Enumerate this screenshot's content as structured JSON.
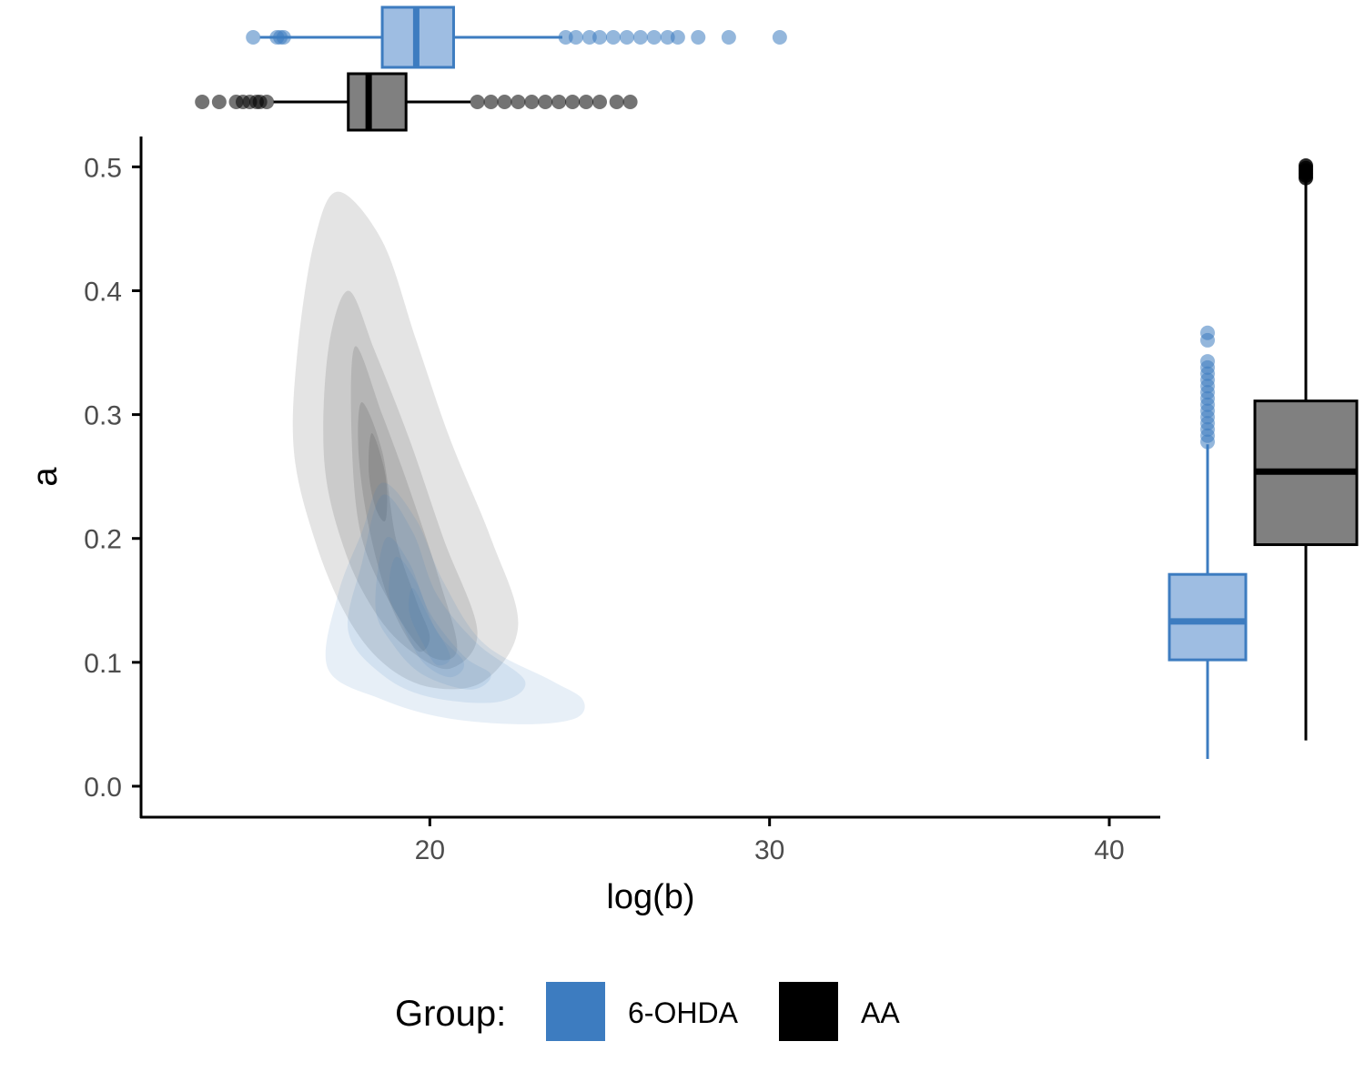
{
  "colors": {
    "group_6ohda": "#3d7cc0",
    "group_6ohda_box_fill": "#9ebde2",
    "group_aa": "#000000",
    "group_aa_box_fill": "#808080",
    "axis": "#000000",
    "tick_text": "#4d4d4d"
  },
  "chart_data": {
    "type": "scatter",
    "variant": "2d density contour with marginal boxplots",
    "title": "",
    "xlabel": "log(b)",
    "ylabel": "a",
    "xlim": [
      11.5,
      41.5
    ],
    "ylim": [
      -0.025,
      0.5245
    ],
    "x_ticks": [
      20,
      30,
      40
    ],
    "y_ticks": [
      0.0,
      0.1,
      0.2,
      0.3,
      0.4,
      0.5
    ],
    "x_tick_labels": [
      "20",
      "30",
      "40"
    ],
    "y_tick_labels": [
      "0.0",
      "0.1",
      "0.2",
      "0.3",
      "0.4",
      "0.5"
    ],
    "grid": false,
    "legend": {
      "title": "Group:",
      "position": "bottom",
      "entries": [
        "6-OHDA",
        "AA"
      ]
    },
    "series": [
      {
        "name": "6-OHDA",
        "color": "#3d7cc0",
        "density_contours": [
          [
            [
              17.0,
              0.095
            ],
            [
              17.3,
              0.155
            ],
            [
              18.0,
              0.205
            ],
            [
              18.6,
              0.245
            ],
            [
              19.6,
              0.215
            ],
            [
              20.4,
              0.165
            ],
            [
              21.6,
              0.115
            ],
            [
              23.6,
              0.085
            ],
            [
              24.5,
              0.07
            ],
            [
              24.3,
              0.055
            ],
            [
              22.8,
              0.05
            ],
            [
              20.5,
              0.055
            ],
            [
              18.6,
              0.07
            ]
          ],
          [
            [
              17.6,
              0.125
            ],
            [
              18.0,
              0.18
            ],
            [
              18.6,
              0.235
            ],
            [
              19.5,
              0.205
            ],
            [
              20.2,
              0.155
            ],
            [
              21.4,
              0.115
            ],
            [
              22.8,
              0.085
            ],
            [
              22.0,
              0.068
            ],
            [
              20.0,
              0.072
            ],
            [
              18.6,
              0.09
            ]
          ],
          [
            [
              18.4,
              0.145
            ],
            [
              18.7,
              0.2
            ],
            [
              19.4,
              0.18
            ],
            [
              20.0,
              0.14
            ],
            [
              21.0,
              0.105
            ],
            [
              21.8,
              0.09
            ],
            [
              21.2,
              0.078
            ],
            [
              19.8,
              0.09
            ],
            [
              18.9,
              0.115
            ]
          ],
          [
            [
              18.8,
              0.155
            ],
            [
              19.0,
              0.185
            ],
            [
              19.6,
              0.165
            ],
            [
              20.2,
              0.125
            ],
            [
              21.0,
              0.1
            ],
            [
              20.6,
              0.088
            ],
            [
              19.8,
              0.1
            ],
            [
              19.2,
              0.13
            ]
          ],
          [
            [
              19.4,
              0.14
            ],
            [
              19.5,
              0.16
            ],
            [
              20.0,
              0.135
            ],
            [
              20.6,
              0.105
            ],
            [
              20.2,
              0.098
            ],
            [
              19.8,
              0.115
            ]
          ]
        ],
        "x_box": {
          "lower_whisker": 15.0,
          "q1": 18.6,
          "median": 19.6,
          "q3": 20.7,
          "upper_whisker": 23.9,
          "outliers": [
            14.8,
            15.5,
            15.6,
            15.7,
            24.0,
            24.3,
            24.7,
            25.0,
            25.4,
            25.8,
            26.2,
            26.6,
            27.0,
            27.3,
            27.9,
            28.8,
            30.3
          ]
        },
        "y_box": {
          "lower_whisker": 0.022,
          "q1": 0.102,
          "median": 0.133,
          "q3": 0.171,
          "upper_whisker": 0.276,
          "outliers": [
            0.278,
            0.283,
            0.288,
            0.293,
            0.298,
            0.303,
            0.308,
            0.313,
            0.318,
            0.323,
            0.328,
            0.333,
            0.338,
            0.343,
            0.36,
            0.366
          ]
        }
      },
      {
        "name": "AA",
        "color": "#000000",
        "density_contours": [
          [
            [
              17.3,
              0.48
            ],
            [
              18.6,
              0.44
            ],
            [
              19.6,
              0.36
            ],
            [
              20.6,
              0.28
            ],
            [
              21.8,
              0.2
            ],
            [
              22.6,
              0.13
            ],
            [
              21.6,
              0.085
            ],
            [
              20.0,
              0.08
            ],
            [
              18.6,
              0.1
            ],
            [
              17.5,
              0.14
            ],
            [
              16.6,
              0.2
            ],
            [
              16.0,
              0.27
            ],
            [
              16.1,
              0.35
            ],
            [
              16.6,
              0.44
            ]
          ],
          [
            [
              17.6,
              0.4
            ],
            [
              18.4,
              0.35
            ],
            [
              19.4,
              0.28
            ],
            [
              20.4,
              0.2
            ],
            [
              21.4,
              0.125
            ],
            [
              20.6,
              0.095
            ],
            [
              19.4,
              0.11
            ],
            [
              18.4,
              0.14
            ],
            [
              17.5,
              0.19
            ],
            [
              16.9,
              0.26
            ],
            [
              17.0,
              0.35
            ]
          ],
          [
            [
              17.8,
              0.355
            ],
            [
              18.6,
              0.3
            ],
            [
              19.4,
              0.24
            ],
            [
              20.3,
              0.165
            ],
            [
              20.8,
              0.11
            ],
            [
              20.0,
              0.105
            ],
            [
              19.0,
              0.14
            ],
            [
              18.0,
              0.2
            ],
            [
              17.7,
              0.28
            ]
          ],
          [
            [
              18.0,
              0.31
            ],
            [
              18.6,
              0.27
            ],
            [
              19.0,
              0.2
            ],
            [
              19.6,
              0.15
            ],
            [
              20.0,
              0.12
            ],
            [
              19.6,
              0.11
            ],
            [
              18.8,
              0.15
            ],
            [
              18.2,
              0.21
            ],
            [
              17.9,
              0.27
            ]
          ],
          [
            [
              18.3,
              0.285
            ],
            [
              18.7,
              0.25
            ],
            [
              18.7,
              0.215
            ],
            [
              18.4,
              0.225
            ],
            [
              18.2,
              0.255
            ]
          ]
        ],
        "x_box": {
          "lower_whisker": 15.4,
          "q1": 17.6,
          "median": 18.2,
          "q3": 19.3,
          "upper_whisker": 21.2,
          "outliers": [
            13.3,
            13.8,
            14.3,
            14.5,
            14.7,
            14.9,
            15.0,
            15.2,
            21.4,
            21.8,
            22.2,
            22.6,
            23.0,
            23.4,
            23.8,
            24.2,
            24.6,
            25.0,
            25.5,
            25.9
          ]
        },
        "y_box": {
          "lower_whisker": 0.037,
          "q1": 0.195,
          "median": 0.254,
          "q3": 0.311,
          "upper_whisker": 0.49,
          "outliers": [
            0.491,
            0.493,
            0.495,
            0.497,
            0.499,
            0.501
          ]
        }
      }
    ]
  }
}
